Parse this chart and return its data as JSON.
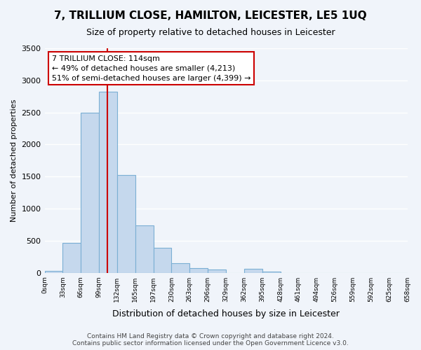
{
  "title": "7, TRILLIUM CLOSE, HAMILTON, LEICESTER, LE5 1UQ",
  "subtitle": "Size of property relative to detached houses in Leicester",
  "xlabel": "Distribution of detached houses by size in Leicester",
  "ylabel": "Number of detached properties",
  "bin_labels": [
    "0sqm",
    "33sqm",
    "66sqm",
    "99sqm",
    "132sqm",
    "165sqm",
    "197sqm",
    "230sqm",
    "263sqm",
    "296sqm",
    "329sqm",
    "362sqm",
    "395sqm",
    "428sqm",
    "461sqm",
    "494sqm",
    "526sqm",
    "559sqm",
    "592sqm",
    "625sqm",
    "658sqm"
  ],
  "bar_values": [
    30,
    470,
    2500,
    2820,
    1520,
    740,
    390,
    145,
    75,
    50,
    0,
    65,
    15,
    0,
    0,
    0,
    0,
    0,
    0,
    0
  ],
  "bar_color": "#c5d8ed",
  "bar_edge_color": "#7bafd4",
  "vline_x": 114,
  "vline_color": "#cc0000",
  "ylim": [
    0,
    3500
  ],
  "yticks": [
    0,
    500,
    1000,
    1500,
    2000,
    2500,
    3000,
    3500
  ],
  "annotation_title": "7 TRILLIUM CLOSE: 114sqm",
  "annotation_line1": "← 49% of detached houses are smaller (4,213)",
  "annotation_line2": "51% of semi-detached houses are larger (4,399) →",
  "annotation_box_color": "#ffffff",
  "annotation_box_edge": "#cc0000",
  "footer_line1": "Contains HM Land Registry data © Crown copyright and database right 2024.",
  "footer_line2": "Contains public sector information licensed under the Open Government Licence v3.0.",
  "background_color": "#f0f4fa",
  "grid_color": "#ffffff",
  "bin_width": 33
}
